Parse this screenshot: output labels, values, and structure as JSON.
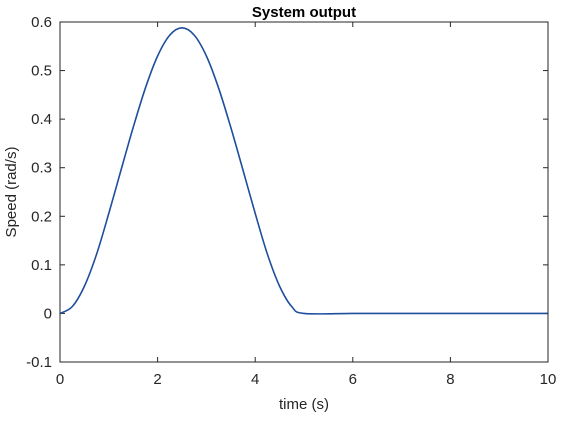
{
  "chart_data": {
    "type": "line",
    "title": "System output",
    "xlabel": "time (s)",
    "ylabel": "Speed (rad/s)",
    "xlim": [
      0,
      10
    ],
    "ylim": [
      -0.1,
      0.6
    ],
    "xticks": [
      0,
      2,
      4,
      6,
      8,
      10
    ],
    "yticks": [
      -0.1,
      0,
      0.1,
      0.2,
      0.3,
      0.4,
      0.5,
      0.6
    ],
    "xtick_labels": [
      "0",
      "2",
      "4",
      "6",
      "8",
      "10"
    ],
    "ytick_labels": [
      "-0.1",
      "0",
      "0.1",
      "0.2",
      "0.3",
      "0.4",
      "0.5",
      "0.6"
    ],
    "grid": false,
    "box": true,
    "series": [
      {
        "color": "#1f4e9c",
        "x": [
          0,
          0.25,
          0.5,
          0.75,
          1.0,
          1.25,
          1.5,
          1.75,
          2.0,
          2.25,
          2.5,
          2.75,
          3.0,
          3.25,
          3.5,
          3.75,
          4.0,
          4.25,
          4.5,
          4.75,
          5.0,
          6.0,
          7.0,
          8.0,
          9.0,
          10.0
        ],
        "y": [
          0,
          0.014,
          0.056,
          0.122,
          0.206,
          0.295,
          0.383,
          0.464,
          0.53,
          0.573,
          0.588,
          0.573,
          0.53,
          0.464,
          0.383,
          0.295,
          0.206,
          0.122,
          0.056,
          0.014,
          0,
          0,
          0,
          0,
          0,
          0
        ]
      }
    ]
  }
}
